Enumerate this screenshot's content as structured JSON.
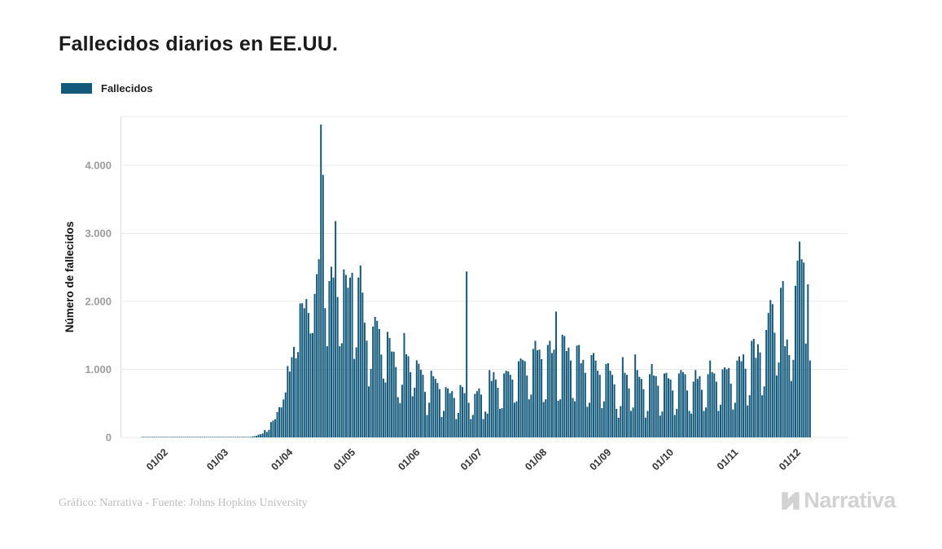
{
  "header": {
    "title": "Fallecidos diarios en EE.UU."
  },
  "legend": {
    "label": "Fallecidos",
    "swatch_color": "#12597c"
  },
  "footer": {
    "credit": "Gráfico: Narrativa - Fuente: Johns Hopkins University",
    "brand": "Narrativa",
    "brand_icon": "narrativa-n-mark"
  },
  "colors": {
    "bar": "#12597c",
    "grid": "#e8e8e8",
    "axis_line": "#e0e0e0",
    "y_tick_text": "#9c9c9c",
    "x_tick_text": "#333333",
    "background": "#ffffff"
  },
  "chart_data": {
    "type": "bar",
    "title": "Fallecidos diarios en EE.UU.",
    "xlabel": "",
    "ylabel": "Número de fallecidos",
    "legend_entries": [
      "Fallecidos"
    ],
    "legend_position": "top-left",
    "grid": true,
    "bar_color": "#12597c",
    "ylim": [
      0,
      4700
    ],
    "y_ticks": [
      {
        "value": 0,
        "label": "0"
      },
      {
        "value": 1000,
        "label": "1.000"
      },
      {
        "value": 2000,
        "label": "2.000"
      },
      {
        "value": 3000,
        "label": "3.000"
      },
      {
        "value": 4000,
        "label": "4.000"
      }
    ],
    "x_ticks": [
      {
        "day_index": 10,
        "label": "01/02"
      },
      {
        "day_index": 39,
        "label": "01/03"
      },
      {
        "day_index": 70,
        "label": "01/04"
      },
      {
        "day_index": 100,
        "label": "01/05"
      },
      {
        "day_index": 131,
        "label": "01/06"
      },
      {
        "day_index": 161,
        "label": "01/07"
      },
      {
        "day_index": 192,
        "label": "01/08"
      },
      {
        "day_index": 223,
        "label": "01/09"
      },
      {
        "day_index": 253,
        "label": "01/10"
      },
      {
        "day_index": 284,
        "label": "01/11"
      },
      {
        "day_index": 314,
        "label": "01/12"
      }
    ],
    "series": [
      {
        "name": "Fallecidos",
        "values": [
          0,
          0,
          0,
          0,
          0,
          0,
          0,
          0,
          0,
          0,
          0,
          0,
          0,
          0,
          0,
          0,
          0,
          0,
          0,
          0,
          0,
          0,
          0,
          0,
          0,
          0,
          0,
          0,
          0,
          0,
          0,
          0,
          0,
          0,
          0,
          0,
          0,
          0,
          1,
          1,
          0,
          4,
          3,
          2,
          3,
          4,
          3,
          1,
          4,
          2,
          2,
          7,
          6,
          11,
          18,
          23,
          41,
          46,
          57,
          110,
          80,
          111,
          225,
          247,
          268,
          372,
          445,
          441,
          558,
          661,
          1049,
          968,
          1180,
          1330,
          1165,
          1255,
          1970,
          1973,
          1900,
          2035,
          1830,
          1528,
          1535,
          2110,
          2400,
          2620,
          4600,
          3860,
          1900,
          1340,
          2300,
          2510,
          2350,
          3180,
          2065,
          1340,
          1384,
          2470,
          2390,
          2201,
          2350,
          2420,
          1154,
          1324,
          2350,
          2528,
          2129,
          1687,
          1422,
          750,
          1008,
          1630,
          1772,
          1715,
          1595,
          1218,
          865,
          808,
          1552,
          1461,
          1263,
          1260,
          1035,
          592,
          505,
          774,
          1535,
          1223,
          1193,
          960,
          605,
          730,
          1134,
          1083,
          995,
          921,
          670,
          330,
          510,
          980,
          900,
          860,
          800,
          710,
          300,
          390,
          740,
          720,
          650,
          680,
          580,
          270,
          360,
          770,
          740,
          650,
          2440,
          510,
          270,
          330,
          640,
          680,
          720,
          630,
          270,
          380,
          350,
          990,
          830,
          960,
          850,
          730,
          420,
          430,
          940,
          980,
          970,
          920,
          850,
          510,
          530,
          1120,
          1160,
          1140,
          1120,
          910,
          560,
          630,
          1300,
          1420,
          1280,
          1290,
          1150,
          520,
          560,
          1360,
          1420,
          1240,
          1290,
          1850,
          540,
          560,
          1510,
          1490,
          1270,
          1320,
          1130,
          580,
          530,
          1350,
          1360,
          1090,
          1140,
          950,
          450,
          510,
          1210,
          1240,
          1130,
          980,
          920,
          430,
          530,
          1080,
          1090,
          980,
          920,
          780,
          420,
          290,
          460,
          1180,
          950,
          920,
          720,
          390,
          440,
          1220,
          990,
          890,
          860,
          710,
          290,
          390,
          930,
          1080,
          910,
          900,
          760,
          320,
          380,
          940,
          950,
          870,
          850,
          690,
          330,
          420,
          940,
          990,
          960,
          930,
          690,
          390,
          350,
          820,
          990,
          860,
          900,
          700,
          390,
          440,
          930,
          1130,
          960,
          940,
          820,
          390,
          480,
          1000,
          1030,
          1000,
          1020,
          790,
          410,
          510,
          1130,
          1190,
          1120,
          1220,
          1010,
          470,
          620,
          1420,
          1450,
          1170,
          1370,
          1250,
          620,
          750,
          1580,
          1830,
          2020,
          1960,
          1540,
          910,
          1100,
          2200,
          2300,
          1340,
          1440,
          1210,
          830,
          1140,
          2230,
          2600,
          2880,
          2620,
          2570,
          1380,
          2250,
          1130
        ]
      }
    ]
  }
}
